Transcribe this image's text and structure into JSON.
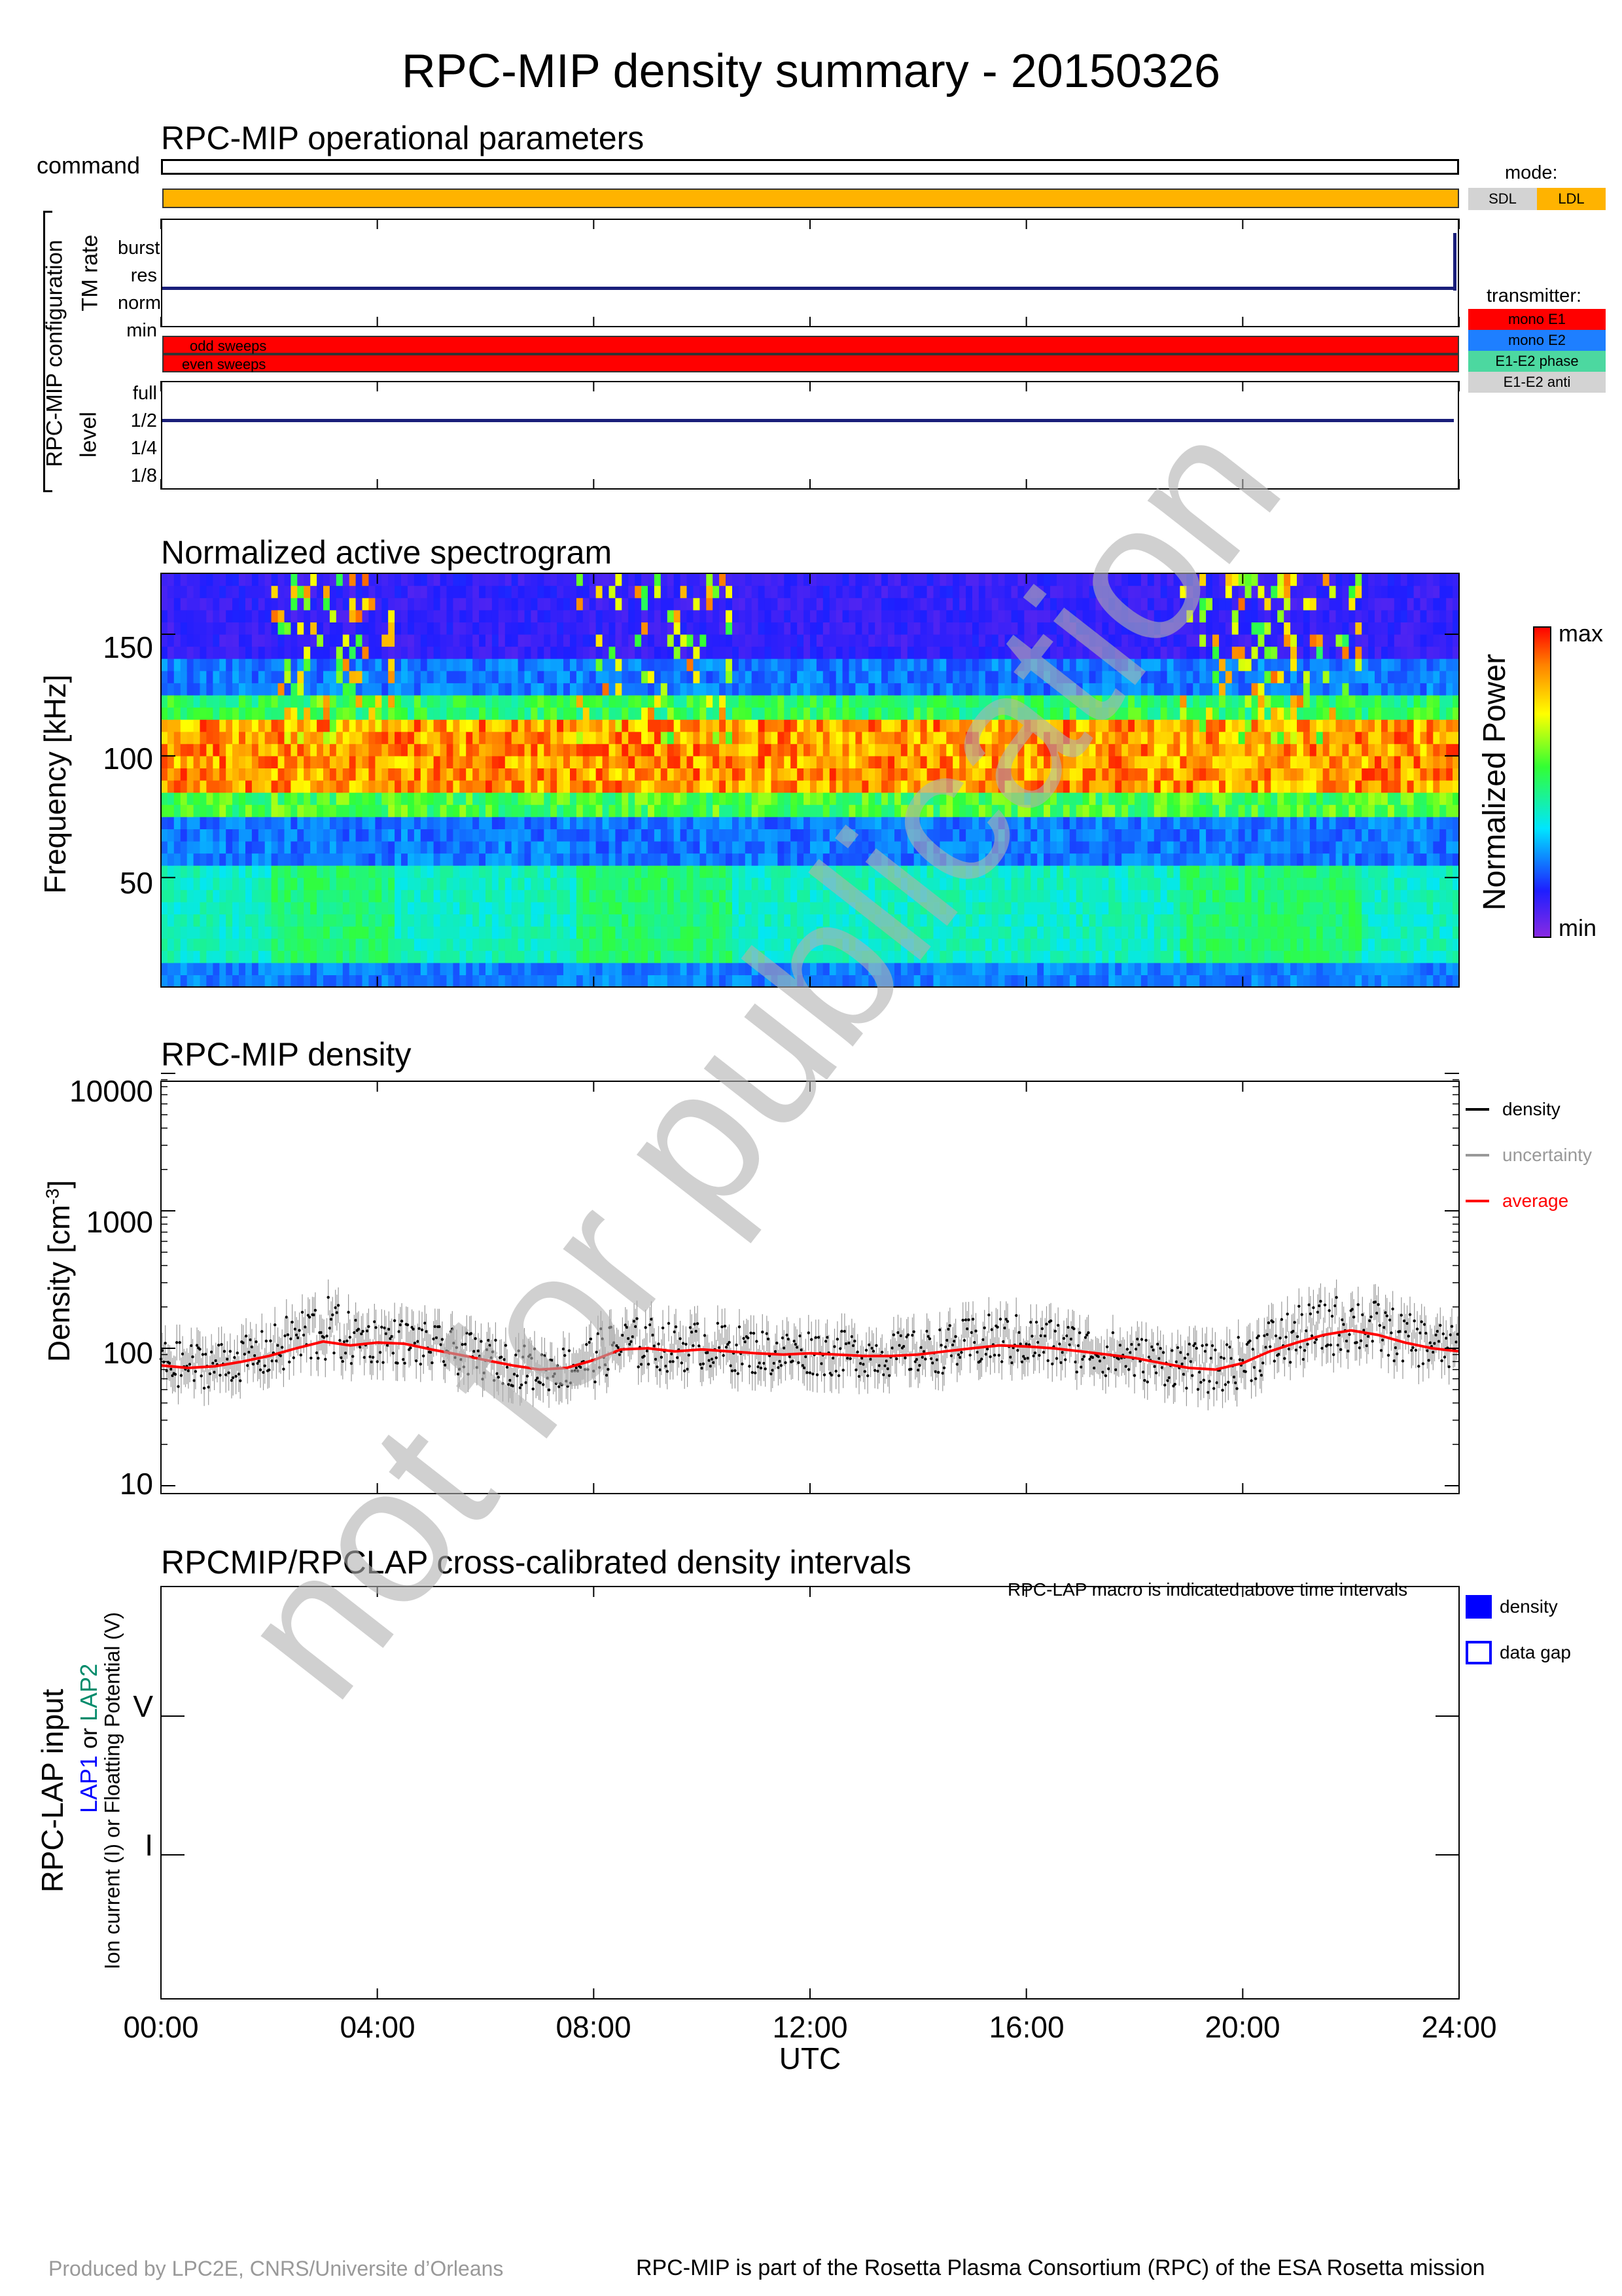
{
  "title": "RPC-MIP density summary - 20150326",
  "watermark": "not for publication",
  "ops_panel": {
    "title": "RPC-MIP operational parameters",
    "command_label": "command",
    "mode_title": "mode:",
    "mode_keys": [
      {
        "label": "SDL",
        "color": "#d3d3d3"
      },
      {
        "label": "LDL",
        "color": "#ffb300"
      }
    ],
    "mode_bar_color": "#ffb300",
    "tm_rate_label": "TM rate",
    "tm_rate_levels": [
      "burst",
      "res",
      "norm",
      "min"
    ],
    "tm_rate_value": "norm",
    "config_label": "RPC-MIP configuration",
    "transmitter_title": "transmitter:",
    "transmitter_keys": [
      {
        "label": "mono E1",
        "color": "#ff0000"
      },
      {
        "label": "mono E2",
        "color": "#1e7fff"
      },
      {
        "label": "E1-E2 phase",
        "color": "#4cd8a0"
      },
      {
        "label": "E1-E2 anti",
        "color": "#d3d3d3"
      }
    ],
    "sweep_labels": [
      "odd sweeps",
      "even sweeps"
    ],
    "sweep_color": "#ff0000",
    "level_label": "level",
    "level_levels": [
      "full",
      "1/2",
      "1/4",
      "1/8"
    ],
    "level_value": "1/2"
  },
  "spectrogram": {
    "title": "Normalized active spectrogram",
    "ylabel": "Frequency [kHz]",
    "yticks": [
      "150",
      "100",
      "50"
    ],
    "colorbar_label": "Normalized Power",
    "colorbar_max": "max",
    "colorbar_min": "min"
  },
  "density_panel": {
    "title": "RPC-MIP density",
    "ylabel": "Density [cm",
    "ylabel_exp": "-3",
    "ylabel_close": "]",
    "yticks": [
      "10000",
      "1000",
      "100",
      "10"
    ],
    "legend": [
      {
        "label": "density",
        "color": "#000000"
      },
      {
        "label": "uncertainty",
        "color": "#999999"
      },
      {
        "label": "average",
        "color": "#ff0000"
      }
    ]
  },
  "lap_panel": {
    "title": "RPCMIP/RPCLAP cross-calibrated density intervals",
    "note": "RPC-LAP macro is indicated above time intervals",
    "ylabel_main": "RPC-LAP input",
    "ylabel_lap1": "LAP1",
    "ylabel_or": "or",
    "ylabel_lap2": "LAP2",
    "ylabel_sub": "Ion current (I) or Floatting Potential (V)",
    "yticks": [
      "V",
      "I"
    ],
    "legend": [
      {
        "label": "density"
      },
      {
        "label": "data gap"
      }
    ]
  },
  "x_axis": {
    "label": "UTC",
    "ticks": [
      "00:00",
      "04:00",
      "08:00",
      "12:00",
      "16:00",
      "20:00",
      "24:00"
    ]
  },
  "chart_data": {
    "type": "scatter",
    "title": "RPC-MIP density",
    "xlabel": "UTC",
    "ylabel": "Density [cm-3]",
    "x_unit": "hours UTC",
    "xlim": [
      0,
      24
    ],
    "ylim": [
      10,
      10000
    ],
    "yscale": "log",
    "grid": false,
    "legend_position": "right",
    "series": [
      {
        "name": "average",
        "x": [
          0,
          0.5,
          1,
          1.5,
          2,
          2.5,
          3,
          3.5,
          4,
          4.5,
          5,
          5.5,
          6,
          6.5,
          7,
          7.5,
          8,
          8.5,
          9,
          9.5,
          10,
          10.5,
          11,
          11.5,
          12,
          12.5,
          13,
          13.5,
          14,
          14.5,
          15,
          15.5,
          16,
          16.5,
          17,
          17.5,
          18,
          18.5,
          19,
          19.5,
          20,
          20.5,
          21,
          21.5,
          22,
          22.5,
          23,
          23.5,
          24
        ],
        "values": [
          75,
          72,
          74,
          80,
          88,
          100,
          112,
          105,
          110,
          108,
          98,
          90,
          82,
          75,
          70,
          72,
          82,
          98,
          100,
          95,
          98,
          95,
          92,
          90,
          92,
          90,
          88,
          88,
          90,
          95,
          100,
          105,
          103,
          100,
          95,
          90,
          85,
          78,
          72,
          70,
          78,
          95,
          110,
          125,
          135,
          125,
          110,
          100,
          95
        ]
      }
    ],
    "envelope_low": [
      55,
      50,
      52,
      58,
      62,
      68,
      78,
      74,
      78,
      76,
      70,
      64,
      58,
      53,
      48,
      50,
      56,
      68,
      70,
      66,
      70,
      66,
      64,
      62,
      64,
      62,
      62,
      62,
      64,
      66,
      70,
      74,
      72,
      70,
      66,
      62,
      58,
      54,
      50,
      46,
      52,
      66,
      76,
      86,
      92,
      86,
      76,
      70,
      66
    ],
    "envelope_high": [
      115,
      110,
      112,
      120,
      140,
      190,
      250,
      180,
      170,
      165,
      150,
      135,
      120,
      110,
      100,
      105,
      130,
      165,
      170,
      150,
      160,
      150,
      140,
      135,
      140,
      135,
      130,
      130,
      135,
      145,
      170,
      180,
      175,
      165,
      150,
      135,
      125,
      115,
      110,
      105,
      125,
      170,
      200,
      230,
      260,
      220,
      180,
      160,
      140
    ]
  }
}
